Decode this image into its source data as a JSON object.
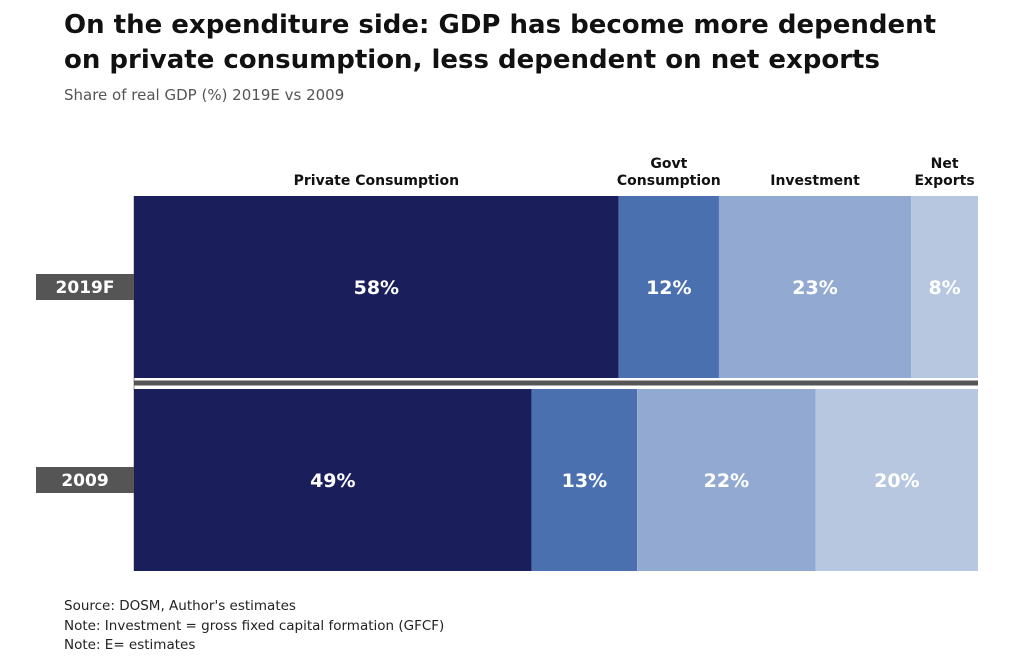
{
  "title": "On the expenditure side: GDP has become more dependent on private consumption, less dependent on net exports",
  "subtitle": "Share of real GDP (%) 2019E vs 2009",
  "colors": {
    "private_consumption": "#1a1f5c",
    "govt_consumption": "#4a70b0",
    "investment": "#92aad2",
    "net_exports": "#b7c7e0",
    "row_label_bg": "#555555"
  },
  "chart_data": {
    "type": "bar",
    "orientation": "horizontal",
    "stacked": "100%",
    "categories": [
      "2019F",
      "2009"
    ],
    "series": [
      {
        "name": "Private Consumption",
        "values": [
          58,
          49
        ],
        "labels": [
          "58%",
          "49%"
        ]
      },
      {
        "name": "Govt Consumption",
        "values": [
          12,
          13
        ],
        "labels": [
          "12%",
          "13%"
        ]
      },
      {
        "name": "Investment",
        "values": [
          23,
          22
        ],
        "labels": [
          "23%",
          "22%"
        ]
      },
      {
        "name": "Net Exports",
        "values": [
          8,
          20
        ],
        "labels": [
          "8%",
          "20%"
        ]
      }
    ],
    "legend_position": "top"
  },
  "footnotes": [
    "Source: DOSM, Author's estimates",
    "Note: Investment = gross fixed capital formation (GFCF)",
    "Note: E= estimates"
  ]
}
